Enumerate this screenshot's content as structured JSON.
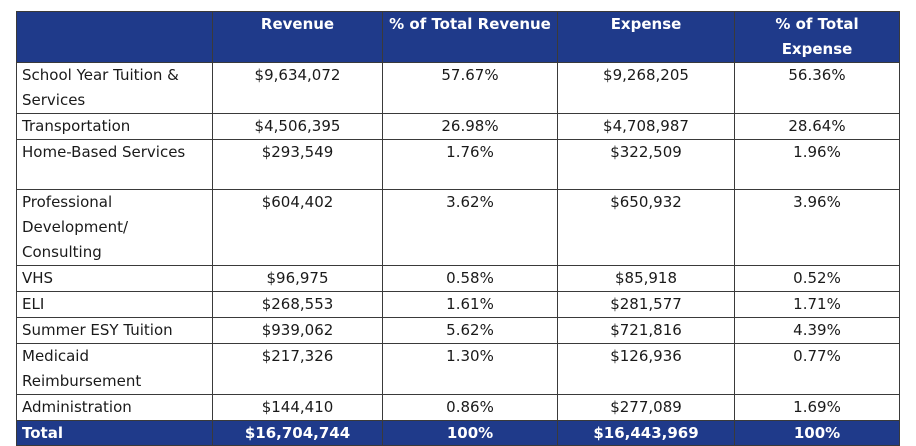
{
  "chart_data": {
    "type": "table",
    "columns": [
      "",
      "Revenue",
      "% of Total Revenue",
      "Expense",
      "% of Total Expense"
    ],
    "rows": [
      {
        "category": "School Year Tuition & Services",
        "revenue": "$9,634,072",
        "revenue_pct": "57.67%",
        "expense": "$9,268,205",
        "expense_pct": "56.36%"
      },
      {
        "category": "Transportation",
        "revenue": "$4,506,395",
        "revenue_pct": "26.98%",
        "expense": "$4,708,987",
        "expense_pct": "28.64%"
      },
      {
        "category": "Home-Based Services",
        "revenue": "$293,549",
        "revenue_pct": "1.76%",
        "expense": "$322,509",
        "expense_pct": "1.96%"
      },
      {
        "category": "Professional Development/ Consulting",
        "revenue": "$604,402",
        "revenue_pct": "3.62%",
        "expense": "$650,932",
        "expense_pct": "3.96%"
      },
      {
        "category": "VHS",
        "revenue": "$96,975",
        "revenue_pct": "0.58%",
        "expense": "$85,918",
        "expense_pct": "0.52%"
      },
      {
        "category": "ELI",
        "revenue": "$268,553",
        "revenue_pct": "1.61%",
        "expense": "$281,577",
        "expense_pct": "1.71%"
      },
      {
        "category": "Summer ESY Tuition",
        "revenue": "$939,062",
        "revenue_pct": "5.62%",
        "expense": "$721,816",
        "expense_pct": "4.39%"
      },
      {
        "category": "Medicaid Reimbursement",
        "revenue": "$217,326",
        "revenue_pct": "1.30%",
        "expense": "$126,936",
        "expense_pct": "0.77%"
      },
      {
        "category": "Administration",
        "revenue": "$144,410",
        "revenue_pct": "0.86%",
        "expense": "$277,089",
        "expense_pct": "1.69%"
      }
    ],
    "total": {
      "category": "Total",
      "revenue": "$16,704,744",
      "revenue_pct": "100%",
      "expense": "$16,443,969",
      "expense_pct": "100%"
    }
  },
  "colors": {
    "header_bg": "#1f3a8a",
    "header_text": "#ffffff",
    "border": "#3a3a3a"
  }
}
